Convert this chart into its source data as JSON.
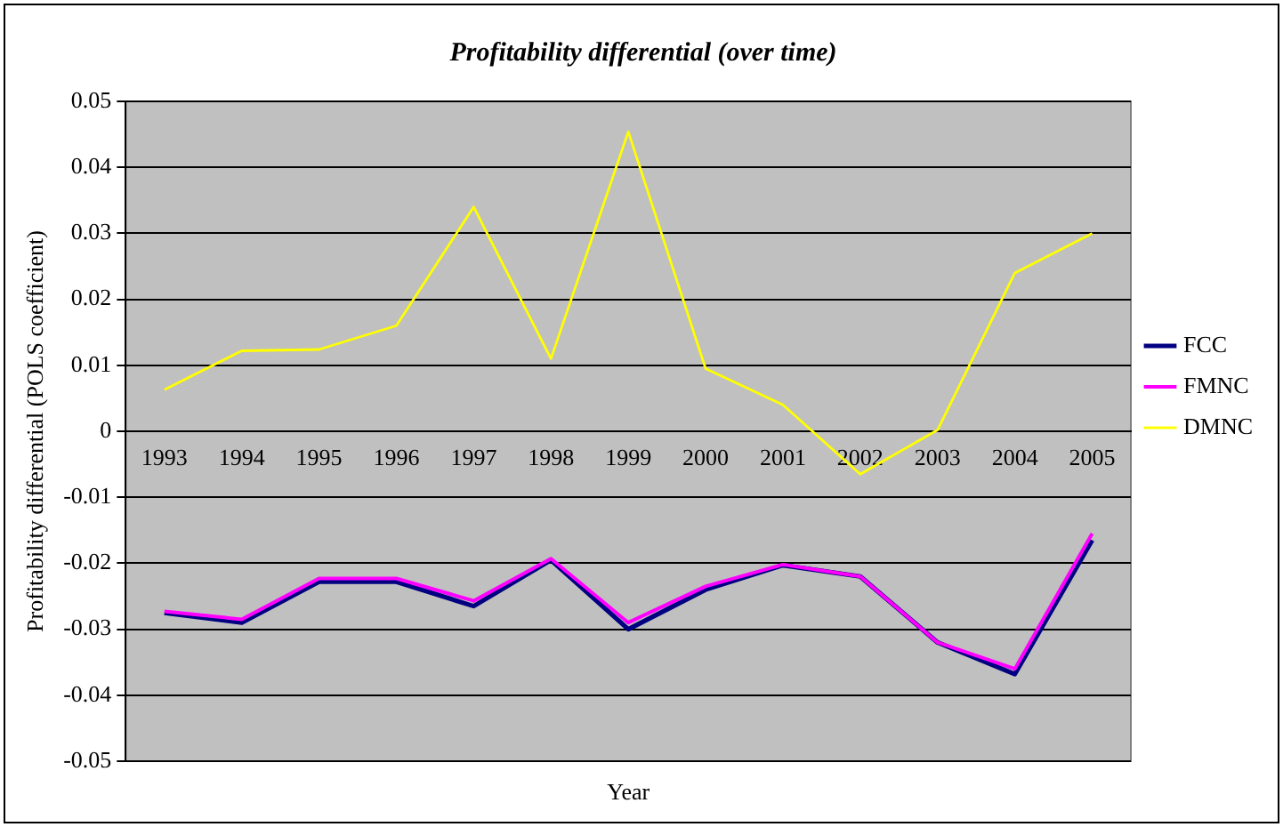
{
  "chart_data": {
    "type": "line",
    "title": "Profitability differential (over time)",
    "xlabel": "Year",
    "ylabel": "Profitability differential (POLS coefficient)",
    "categories": [
      "1993",
      "1994",
      "1995",
      "1996",
      "1997",
      "1998",
      "1999",
      "2000",
      "2001",
      "2002",
      "2003",
      "2004",
      "2005"
    ],
    "series": [
      {
        "name": "FCC",
        "color": "#000080",
        "values": [
          -0.0275,
          -0.029,
          -0.0228,
          -0.0228,
          -0.0265,
          -0.0195,
          -0.03,
          -0.024,
          -0.0203,
          -0.022,
          -0.032,
          -0.0368,
          -0.0165
        ]
      },
      {
        "name": "FMNC",
        "color": "#ff00ff",
        "values": [
          -0.0273,
          -0.0285,
          -0.0223,
          -0.0223,
          -0.0257,
          -0.0193,
          -0.029,
          -0.0235,
          -0.0202,
          -0.022,
          -0.032,
          -0.036,
          -0.0155
        ]
      },
      {
        "name": "DMNC",
        "color": "#ffff00",
        "values": [
          0.0063,
          0.0122,
          0.0124,
          0.016,
          0.034,
          0.011,
          0.0454,
          0.0095,
          0.004,
          -0.0065,
          0.0002,
          0.024,
          0.03
        ]
      }
    ],
    "ylim": [
      -0.05,
      0.05
    ],
    "yticks": [
      -0.05,
      -0.04,
      -0.03,
      -0.02,
      -0.01,
      0,
      0.01,
      0.02,
      0.03,
      0.04,
      0.05
    ],
    "grid": "y",
    "legend": "right",
    "marker": "none",
    "line_style": "solid"
  }
}
